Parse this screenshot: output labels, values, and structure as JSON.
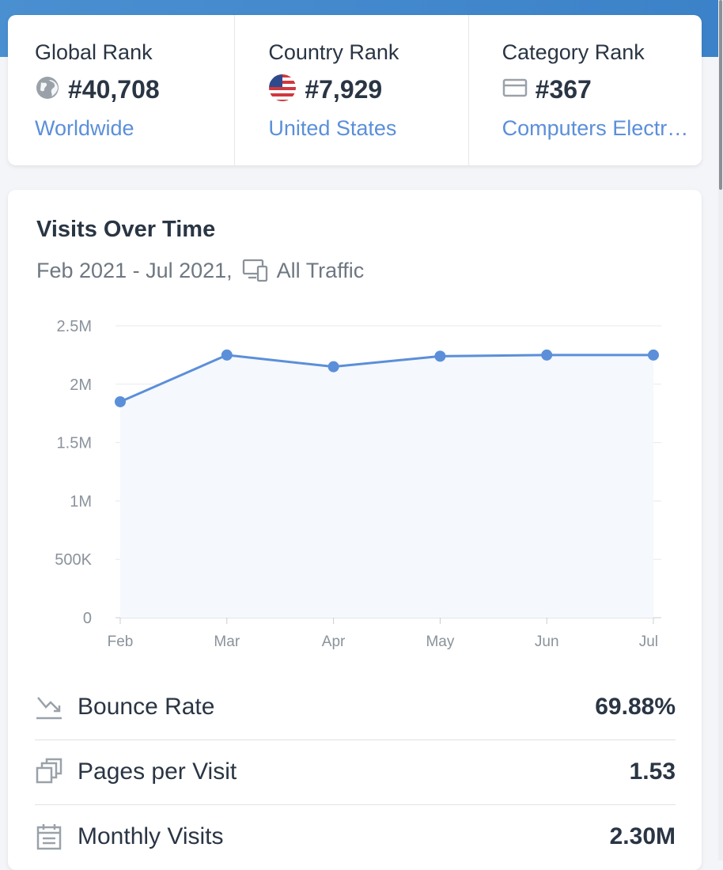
{
  "ranks": [
    {
      "label": "Global Rank",
      "value": "#40,708",
      "link": "Worldwide",
      "icon": "globe-icon"
    },
    {
      "label": "Country Rank",
      "value": "#7,929",
      "link": "United States",
      "icon": "us-flag-icon"
    },
    {
      "label": "Category Rank",
      "value": "#367",
      "link": "Computers Electronics and Technology",
      "icon": "category-icon"
    }
  ],
  "visits": {
    "title": "Visits Over Time",
    "period": "Feb 2021 - Jul 2021,",
    "traffic": "All Traffic",
    "traffic_icon": "devices-icon"
  },
  "chart_data": {
    "type": "area",
    "categories": [
      "Feb",
      "Mar",
      "Apr",
      "May",
      "Jun",
      "Jul"
    ],
    "values": [
      1850000,
      2250000,
      2150000,
      2240000,
      2250000,
      2250000
    ],
    "y_ticks": [
      "0",
      "500K",
      "1M",
      "1.5M",
      "2M",
      "2.5M"
    ],
    "ylim": [
      0,
      2500000
    ],
    "line_color": "#5b8fd9",
    "fill_color": "#f5f8fd",
    "grid": true
  },
  "metrics": [
    {
      "label": "Bounce Rate",
      "value": "69.88%",
      "icon": "bounce-rate-icon"
    },
    {
      "label": "Pages per Visit",
      "value": "1.53",
      "icon": "pages-icon"
    },
    {
      "label": "Monthly Visits",
      "value": "2.30M",
      "icon": "calendar-icon"
    }
  ]
}
